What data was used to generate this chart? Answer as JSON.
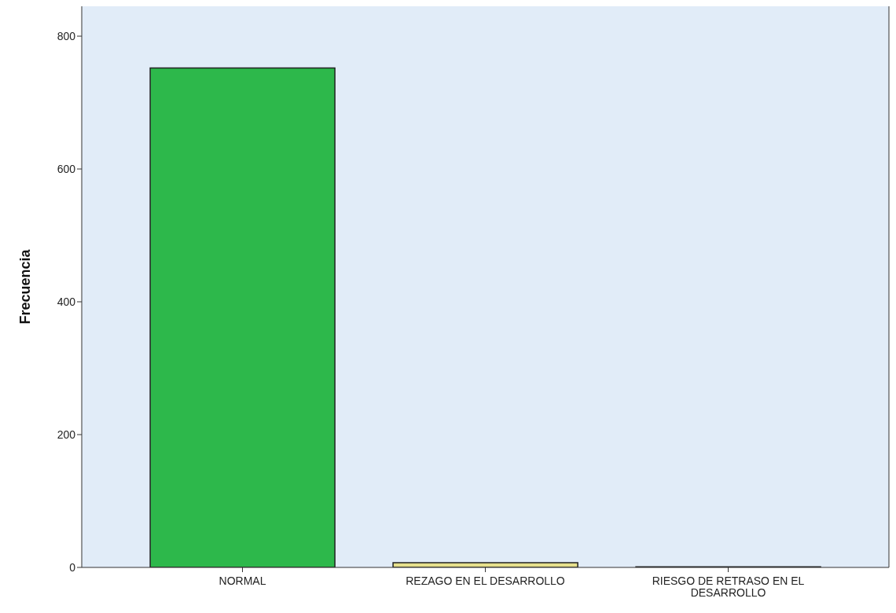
{
  "chart_data": {
    "type": "bar",
    "ylabel": "Frecuencia",
    "categories": [
      "NORMAL",
      "REZAGO EN EL DESARROLLO",
      "RIESGO DE RETRASO EN EL DESARROLLO"
    ],
    "values": [
      752,
      7,
      1
    ],
    "colors": [
      "#2db84b",
      "#e6e08c",
      "#4a4a6a"
    ],
    "ylim": [
      0,
      845
    ],
    "yticks": [
      0,
      200,
      400,
      600,
      800
    ],
    "grid": false
  }
}
